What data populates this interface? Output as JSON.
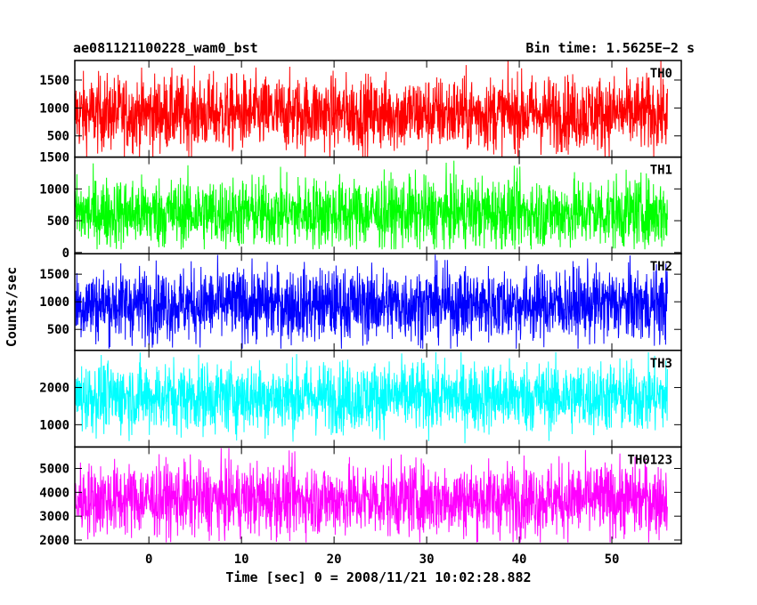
{
  "header": {
    "left_title": "ae081121100228_wam0_bst",
    "right_title": "Bin time: 1.5625E−2 s"
  },
  "chart_data": {
    "type": "line",
    "xlabel": "Time [sec] 0 = 2008/11/21 10:02:28.882",
    "ylabel": "Counts/sec",
    "xlim": [
      -8,
      57.5
    ],
    "x_ticks": [
      0,
      10,
      20,
      30,
      40,
      50
    ],
    "x_tick_labels": [
      "0",
      "10",
      "20",
      "30",
      "40",
      "50"
    ],
    "data_x_range": [
      -8,
      56
    ],
    "bin_time": 0.015625,
    "grid": false,
    "panels": [
      {
        "name": "TH0",
        "color": "#ff0000",
        "ylim": [
          120,
          1850
        ],
        "y_ticks": [
          500,
          1000,
          1500
        ],
        "y_tick_labels": [
          "500",
          "1000",
          "1500"
        ],
        "y_range": [
          120,
          1850
        ],
        "y_mean": 900
      },
      {
        "name": "TH1",
        "color": "#00ff00",
        "ylim": [
          -20,
          1500
        ],
        "y_ticks": [
          0,
          500,
          1000,
          1500
        ],
        "y_tick_labels": [
          "0",
          "500",
          "1000",
          "1500"
        ],
        "y_range": [
          50,
          1480
        ],
        "y_mean": 620
      },
      {
        "name": "TH2",
        "color": "#0000ff",
        "ylim": [
          120,
          1870
        ],
        "y_ticks": [
          500,
          1000,
          1500
        ],
        "y_tick_labels": [
          "500",
          "1000",
          "1500"
        ],
        "y_range": [
          150,
          1860
        ],
        "y_mean": 950
      },
      {
        "name": "TH3",
        "color": "#00ffff",
        "ylim": [
          400,
          3000
        ],
        "y_ticks": [
          1000,
          2000
        ],
        "y_tick_labels": [
          "1000",
          "2000"
        ],
        "y_range": [
          500,
          2950
        ],
        "y_mean": 1750
      },
      {
        "name": "TH0123",
        "color": "#ff00ff",
        "ylim": [
          1850,
          5900
        ],
        "y_ticks": [
          2000,
          3000,
          4000,
          5000
        ],
        "y_tick_labels": [
          "2000",
          "3000",
          "4000",
          "5000"
        ],
        "y_range": [
          1900,
          5850
        ],
        "y_mean": 3700
      }
    ]
  }
}
